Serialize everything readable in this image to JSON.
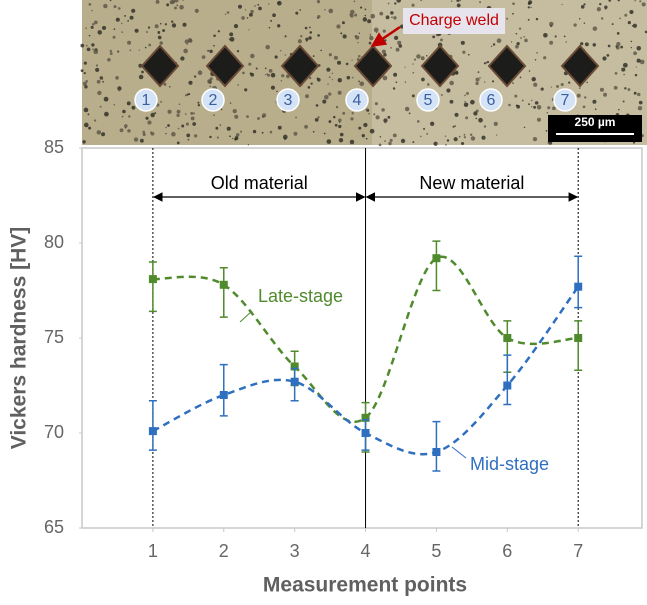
{
  "micrograph": {
    "markers": [
      "1",
      "2",
      "3",
      "4",
      "5",
      "6",
      "7"
    ],
    "annotation": "Charge weld",
    "scale_bar": "250 µm"
  },
  "chart_data": {
    "type": "line",
    "x_label": "Measurement points",
    "y_label": "Vickers hardness [HV]",
    "x": [
      1,
      2,
      3,
      4,
      5,
      6,
      7
    ],
    "series": [
      {
        "name": "Late-stage",
        "color": "#4f8a2c",
        "values": [
          78.1,
          77.8,
          73.5,
          70.8,
          79.2,
          75.0,
          75.0
        ],
        "error_low": [
          76.4,
          76.1,
          72.5,
          69.0,
          77.5,
          73.2,
          73.3
        ],
        "error_high": [
          79.0,
          78.7,
          74.3,
          71.6,
          80.1,
          75.9,
          75.9
        ]
      },
      {
        "name": "Mid-stage",
        "color": "#2f6fc0",
        "values": [
          70.1,
          72.0,
          72.7,
          70.0,
          69.0,
          72.5,
          77.7
        ],
        "error_low": [
          69.1,
          70.9,
          71.7,
          69.1,
          68.0,
          71.5,
          76.6
        ],
        "error_high": [
          71.7,
          73.6,
          73.4,
          70.7,
          70.6,
          74.1,
          79.3
        ]
      }
    ],
    "spans": [
      {
        "label": "Old material",
        "from": 1,
        "to": 4
      },
      {
        "label": "New material",
        "from": 4,
        "to": 7
      }
    ],
    "vlines": [
      {
        "x": 1,
        "style": "dotted"
      },
      {
        "x": 4,
        "style": "solid"
      },
      {
        "x": 7,
        "style": "dotted"
      }
    ],
    "xlim": [
      0,
      7.9
    ],
    "ylim": [
      65,
      85
    ],
    "xticks": [
      1,
      2,
      3,
      4,
      5,
      6,
      7
    ],
    "yticks": [
      65,
      70,
      75,
      80,
      85
    ],
    "grid": false
  }
}
